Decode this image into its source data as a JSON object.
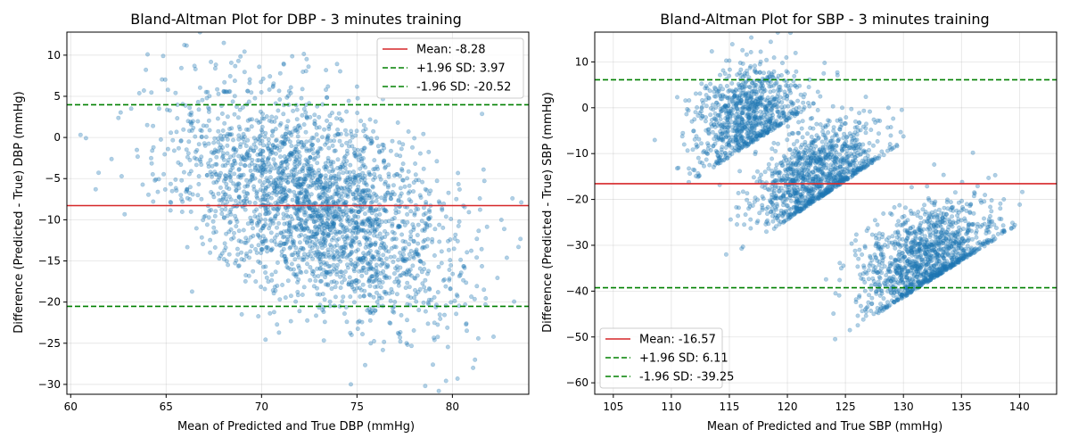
{
  "figure": {
    "background": "#ffffff"
  },
  "chart_data": [
    {
      "type": "scatter",
      "title": "Bland-Altman Plot for DBP - 3 minutes training",
      "xlabel": "Mean of Predicted and True DBP (mmHg)",
      "ylabel": "Difference (Predicted - True) DBP (mmHg)",
      "xlim": [
        59.8,
        84.0
      ],
      "ylim": [
        -31.2,
        12.8
      ],
      "xticks": [
        60,
        65,
        70,
        75,
        80
      ],
      "yticks": [
        -30,
        -25,
        -20,
        -15,
        -10,
        -5,
        0,
        5,
        10
      ],
      "grid": true,
      "legend_position": "top-right",
      "point_color": "#1f77b4",
      "point_alpha": 0.35,
      "lines": [
        {
          "label": "Mean: -8.28",
          "y": -8.28,
          "color": "#d62728",
          "style": "solid"
        },
        {
          "label": "+1.96 SD: 3.97",
          "y": 3.97,
          "color": "#008000",
          "style": "dashed"
        },
        {
          "label": "-1.96 SD: -20.52",
          "y": -20.52,
          "color": "#008000",
          "style": "dashed"
        }
      ],
      "clusters": [
        {
          "x_mean": 73.0,
          "x_sd": 3.6,
          "y_mean": -8.28,
          "y_sd": 6.1,
          "slope": -0.95,
          "count": 2600,
          "seed": 11
        }
      ]
    },
    {
      "type": "scatter",
      "title": "Bland-Altman Plot for SBP - 3 minutes training",
      "xlabel": "Mean of Predicted and True SBP (mmHg)",
      "ylabel": "Difference (Predicted - True) SBP (mmHg)",
      "xlim": [
        103.4,
        143.2
      ],
      "ylim": [
        -62.5,
        16.5
      ],
      "xticks": [
        105,
        110,
        115,
        120,
        125,
        130,
        135,
        140
      ],
      "yticks": [
        -60,
        -50,
        -40,
        -30,
        -20,
        -10,
        0,
        10
      ],
      "grid": true,
      "legend_position": "bottom-left",
      "point_color": "#1f77b4",
      "point_alpha": 0.35,
      "lines": [
        {
          "label": "Mean: -16.57",
          "y": -16.57,
          "color": "#d62728",
          "style": "solid"
        },
        {
          "label": "+1.96 SD: 6.11",
          "y": 6.11,
          "color": "#008000",
          "style": "dashed"
        },
        {
          "label": "-1.96 SD: -39.25",
          "y": -39.25,
          "color": "#008000",
          "style": "dashed"
        }
      ],
      "clusters": [
        {
          "x_mean": 116.5,
          "x_sd": 2.4,
          "y_mean": -2.0,
          "y_sd": 5.5,
          "slope": 1.6,
          "edge": {
            "anchor_x": 113.0,
            "anchor_y": -14.0,
            "side": "upper"
          },
          "count": 900,
          "seed": 21
        },
        {
          "x_mean": 122.5,
          "x_sd": 2.6,
          "y_mean": -15.0,
          "y_sd": 5.5,
          "slope": 1.7,
          "edge": {
            "anchor_x": 118.5,
            "anchor_y": -27.0,
            "side": "upper"
          },
          "count": 1100,
          "seed": 31
        },
        {
          "x_mean": 132.0,
          "x_sd": 2.8,
          "y_mean": -33.0,
          "y_sd": 6.0,
          "slope": 1.6,
          "edge": {
            "anchor_x": 126.5,
            "anchor_y": -47.0,
            "side": "upper"
          },
          "count": 1200,
          "seed": 41
        }
      ]
    }
  ]
}
